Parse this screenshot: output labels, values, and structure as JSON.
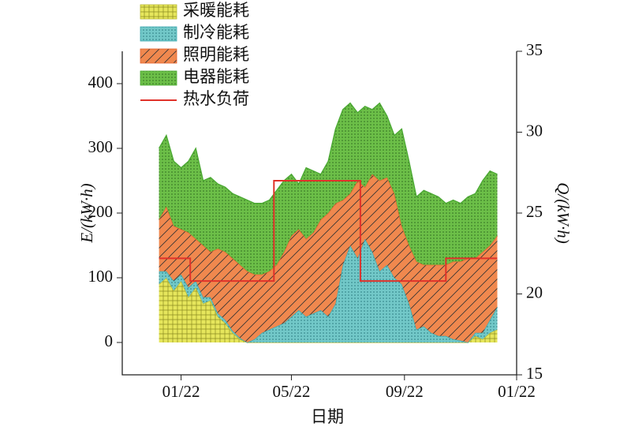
{
  "chart_data": {
    "type": "area",
    "stacked": true,
    "x_label": "日期",
    "y_label": "E/(kW·h)",
    "y2_label": "Q/(kW·h)",
    "x": [
      -24,
      -16,
      -8,
      0,
      8,
      16,
      24,
      32,
      40,
      48,
      56,
      64,
      72,
      80,
      88,
      96,
      104,
      112,
      120,
      128,
      136,
      144,
      152,
      160,
      168,
      176,
      184,
      192,
      200,
      208,
      216,
      224,
      232,
      240,
      248,
      256,
      264,
      272,
      280,
      288,
      296,
      304,
      312,
      320,
      328,
      336,
      344
    ],
    "xlim": [
      -64,
      365
    ],
    "xticks": [
      {
        "value": 0,
        "label": "01/22"
      },
      {
        "value": 120,
        "label": "05/22"
      },
      {
        "value": 243,
        "label": "09/22"
      },
      {
        "value": 365,
        "label": "01/22"
      }
    ],
    "ylim": [
      -50,
      450
    ],
    "yticks": [
      0,
      100,
      200,
      300,
      400
    ],
    "y2lim": [
      15,
      35
    ],
    "y2ticks": [
      15,
      20,
      25,
      30,
      35
    ],
    "series": [
      {
        "name": "采暖能耗",
        "color": "#e6e65c",
        "edge": "#b8b832",
        "values": [
          90,
          100,
          80,
          95,
          70,
          85,
          60,
          65,
          40,
          30,
          15,
          5,
          0,
          0,
          0,
          0,
          0,
          0,
          0,
          0,
          0,
          0,
          0,
          0,
          0,
          0,
          0,
          0,
          0,
          0,
          0,
          0,
          0,
          0,
          0,
          0,
          0,
          0,
          0,
          0,
          0,
          0,
          0,
          10,
          5,
          15,
          20
        ]
      },
      {
        "name": "制冷能耗",
        "color": "#72c8c8",
        "edge": "#3aa8b0",
        "values": [
          20,
          10,
          15,
          10,
          15,
          10,
          10,
          5,
          5,
          5,
          3,
          2,
          0,
          5,
          15,
          20,
          25,
          30,
          40,
          50,
          40,
          45,
          50,
          40,
          60,
          120,
          150,
          130,
          160,
          140,
          110,
          120,
          100,
          90,
          60,
          20,
          25,
          15,
          10,
          10,
          5,
          3,
          0,
          5,
          10,
          20,
          35
        ]
      },
      {
        "name": "照明能耗",
        "color": "#f0884e",
        "edge": "#e5602a",
        "values": [
          80,
          100,
          85,
          70,
          85,
          65,
          80,
          70,
          100,
          105,
          112,
          113,
          110,
          100,
          90,
          90,
          95,
          110,
          125,
          125,
          120,
          125,
          140,
          160,
          155,
          100,
          80,
          120,
          80,
          120,
          140,
          135,
          130,
          90,
          90,
          105,
          95,
          105,
          110,
          110,
          120,
          122,
          130,
          115,
          125,
          115,
          110
        ]
      },
      {
        "name": "电器能耗",
        "color": "#6cbf48",
        "edge": "#4aa832",
        "values": [
          110,
          110,
          100,
          95,
          110,
          140,
          100,
          115,
          100,
          100,
          100,
          105,
          110,
          110,
          110,
          110,
          115,
          110,
          95,
          70,
          110,
          95,
          70,
          80,
          115,
          140,
          140,
          105,
          125,
          100,
          120,
          95,
          90,
          150,
          130,
          100,
          115,
          110,
          105,
          95,
          95,
          90,
          95,
          100,
          110,
          115,
          95
        ]
      },
      {
        "name": "热水负荷",
        "color": "#e0322a",
        "axis": "y2",
        "type": "line",
        "x": [
          -24,
          10,
          10,
          101,
          101,
          195,
          195,
          288,
          288,
          344
        ],
        "values": [
          22.2,
          22.2,
          20.8,
          20.8,
          27,
          27,
          20.8,
          20.8,
          22.2,
          22.2
        ]
      }
    ]
  }
}
